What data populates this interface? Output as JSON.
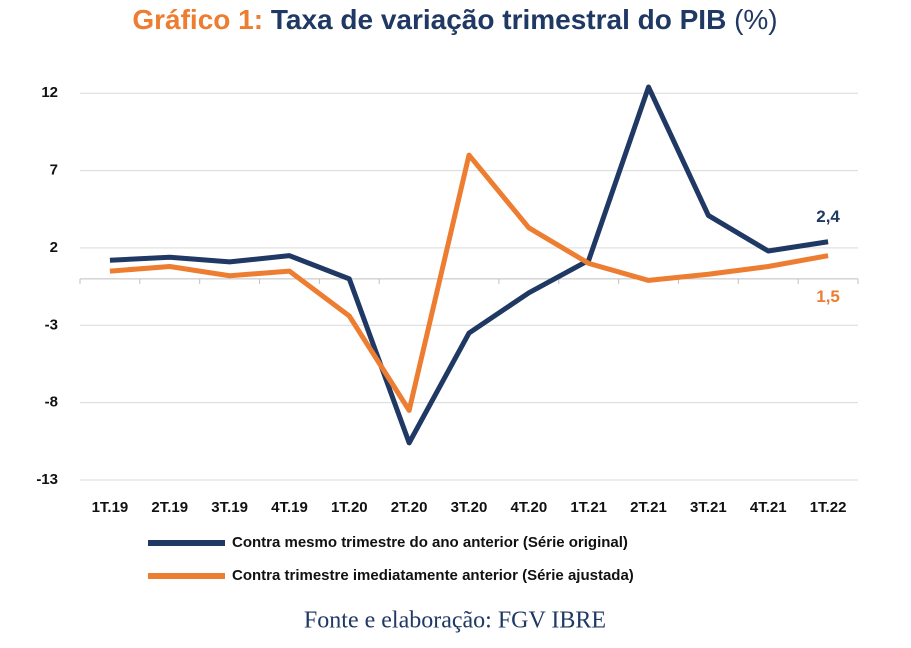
{
  "chart_data": {
    "type": "line",
    "title": [
      "Gráfico 1:",
      "Taxa de variação trimestral do PIB",
      "(%)"
    ],
    "source": "Fonte e elaboração: FGV IBRE",
    "categories": [
      "1T.19",
      "2T.19",
      "3T.19",
      "4T.19",
      "1T.20",
      "2T.20",
      "3T.20",
      "4T.20",
      "1T.21",
      "2T.21",
      "3T.21",
      "4T.21",
      "1T.22"
    ],
    "series": [
      {
        "name": "Contra mesmo trimestre do ano anterior (Série original)",
        "color": "#1f3864",
        "values": [
          1.2,
          1.4,
          1.1,
          1.5,
          0.0,
          -10.6,
          -3.5,
          -0.9,
          1.2,
          12.4,
          4.1,
          1.8,
          2.4
        ],
        "value_labels": [
          null,
          null,
          null,
          null,
          null,
          null,
          null,
          null,
          null,
          null,
          null,
          null,
          "2,4"
        ]
      },
      {
        "name": "Contra trimestre imediatamente anterior (Série ajustada)",
        "color": "#ed7d31",
        "values": [
          0.5,
          0.8,
          0.2,
          0.5,
          -2.4,
          -8.5,
          8.0,
          3.3,
          1.0,
          -0.1,
          0.3,
          0.8,
          1.5
        ],
        "value_labels": [
          null,
          null,
          null,
          null,
          null,
          null,
          null,
          null,
          null,
          null,
          null,
          null,
          "1,5"
        ]
      }
    ],
    "ylim": [
      -13,
      13.5
    ],
    "yticks": [
      12,
      7,
      2,
      -3,
      -8,
      -13
    ],
    "grid": true
  }
}
